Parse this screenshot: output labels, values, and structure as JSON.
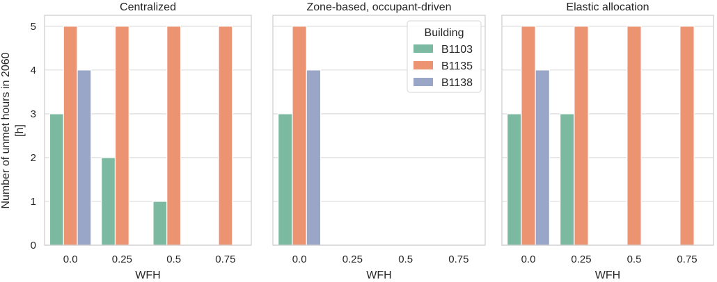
{
  "chart_data": {
    "type": "bar",
    "ylabel_lines": [
      "Number of unmet hours in 2060",
      "[h]"
    ],
    "xlabel": "WFH",
    "categories": [
      "0.0",
      "0.25",
      "0.5",
      "0.75"
    ],
    "ylim": [
      0,
      5.25
    ],
    "yticks": [
      0,
      1,
      2,
      3,
      4,
      5
    ],
    "grid": true,
    "legend": {
      "title": "Building",
      "placement": "top-right of middle panel",
      "entries": [
        "B1103",
        "B1135",
        "B1138"
      ]
    },
    "colors": {
      "B1103": "#7bbaa0",
      "B1135": "#ec9372",
      "B1138": "#99a6c8"
    },
    "panels": [
      {
        "title": "Centralized",
        "series": [
          {
            "name": "B1103",
            "values": [
              3,
              2,
              1,
              null
            ]
          },
          {
            "name": "B1135",
            "values": [
              5,
              5,
              5,
              5
            ]
          },
          {
            "name": "B1138",
            "values": [
              4,
              null,
              null,
              null
            ]
          }
        ]
      },
      {
        "title": "Zone-based, occupant-driven",
        "series": [
          {
            "name": "B1103",
            "values": [
              3,
              null,
              null,
              null
            ]
          },
          {
            "name": "B1135",
            "values": [
              5,
              null,
              null,
              null
            ]
          },
          {
            "name": "B1138",
            "values": [
              4,
              null,
              null,
              null
            ]
          }
        ]
      },
      {
        "title": "Elastic allocation",
        "series": [
          {
            "name": "B1103",
            "values": [
              3,
              3,
              null,
              null
            ]
          },
          {
            "name": "B1135",
            "values": [
              5,
              5,
              5,
              5
            ]
          },
          {
            "name": "B1138",
            "values": [
              4,
              null,
              null,
              null
            ]
          }
        ]
      }
    ]
  }
}
